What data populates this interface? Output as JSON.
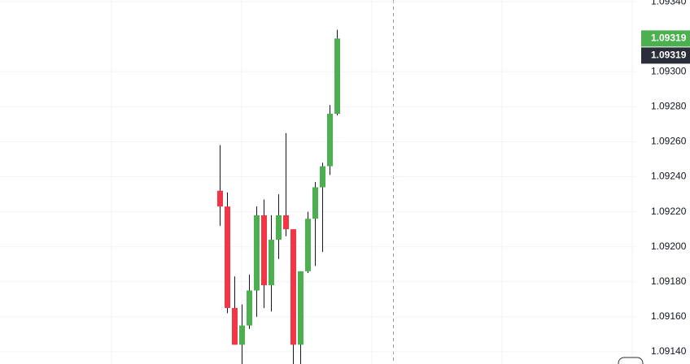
{
  "chart_data": {
    "type": "candlestick",
    "open": [
      1.09232,
      1.09223,
      1.09165,
      1.09144,
      1.09155,
      1.09175,
      1.09218,
      1.09178,
      1.09204,
      1.09218,
      1.0921,
      1.09144,
      1.09186,
      1.09216,
      1.09234,
      1.09246,
      1.09276
    ],
    "high": [
      1.09258,
      1.09231,
      1.09183,
      1.09167,
      1.09184,
      1.09223,
      1.09227,
      1.09218,
      1.0923,
      1.09265,
      1.0921,
      1.09186,
      1.0922,
      1.09237,
      1.09248,
      1.09281,
      1.09324
    ],
    "low": [
      1.09212,
      1.09162,
      1.09144,
      1.09133,
      1.09153,
      1.0916,
      1.09165,
      1.09163,
      1.09193,
      1.09206,
      1.09133,
      1.09133,
      1.09185,
      1.09189,
      1.09197,
      1.09241,
      1.09275
    ],
    "close": [
      1.09223,
      1.09165,
      1.09144,
      1.09155,
      1.09175,
      1.09218,
      1.09178,
      1.09204,
      1.09218,
      1.0921,
      1.09144,
      1.09186,
      1.09216,
      1.09234,
      1.09246,
      1.09276,
      1.09319
    ],
    "up_color": "#4caf50",
    "down_color": "#f23645",
    "ylim": [
      1.09133,
      1.09341
    ],
    "yticks": [
      {
        "value": 1.0914,
        "label": "1.09140"
      },
      {
        "value": 1.0916,
        "label": "1.09160"
      },
      {
        "value": 1.0918,
        "label": "1.09180"
      },
      {
        "value": 1.092,
        "label": "1.09200"
      },
      {
        "value": 1.0922,
        "label": "1.09220"
      },
      {
        "value": 1.0924,
        "label": "1.09240"
      },
      {
        "value": 1.0926,
        "label": "1.09260"
      },
      {
        "value": 1.0928,
        "label": "1.09280"
      },
      {
        "value": 1.093,
        "label": "1.09300"
      },
      {
        "value": 1.0934,
        "label": "1.09340"
      }
    ],
    "price_labels": [
      {
        "value": 1.09319,
        "color": "#4caf50"
      },
      {
        "value": 1.09319,
        "color": "#2a2e39"
      }
    ],
    "grid": true
  }
}
